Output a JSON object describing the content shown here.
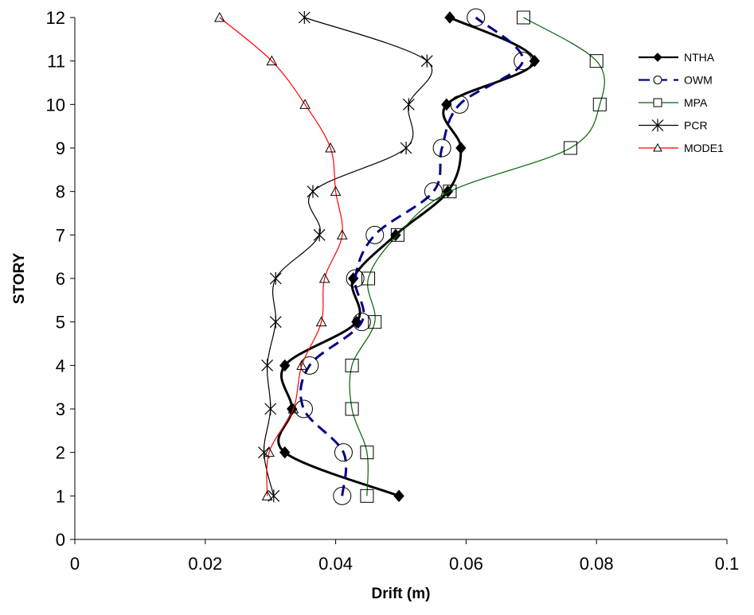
{
  "chart_data": {
    "type": "line",
    "xlabel": "Drift (m)",
    "ylabel": "STORY",
    "xlim": [
      0,
      0.1
    ],
    "ylim": [
      0,
      12
    ],
    "x_ticks": [
      "0",
      "0.02",
      "0.04",
      "0.06",
      "0.08",
      "0.1"
    ],
    "y_ticks": [
      "0",
      "1",
      "2",
      "3",
      "4",
      "5",
      "6",
      "7",
      "8",
      "9",
      "10",
      "11",
      "12"
    ],
    "grid": false,
    "legend_position": "top-right",
    "series": [
      {
        "name": "NTHA",
        "color": "#000000",
        "marker": "filled-diamond",
        "line": "solid-thick",
        "points": [
          [
            0.0497,
            1
          ],
          [
            0.0322,
            2
          ],
          [
            0.0333,
            3
          ],
          [
            0.0322,
            4
          ],
          [
            0.0432,
            5
          ],
          [
            0.0427,
            6
          ],
          [
            0.0492,
            7
          ],
          [
            0.0572,
            8
          ],
          [
            0.0592,
            9
          ],
          [
            0.057,
            10
          ],
          [
            0.0705,
            11
          ],
          [
            0.0575,
            12
          ]
        ]
      },
      {
        "name": "OWM",
        "color": "#00008b",
        "marker": "open-circle",
        "line": "dashed-thick",
        "points": [
          [
            0.041,
            1
          ],
          [
            0.0412,
            2
          ],
          [
            0.0351,
            3
          ],
          [
            0.036,
            4
          ],
          [
            0.044,
            5
          ],
          [
            0.043,
            6
          ],
          [
            0.046,
            7
          ],
          [
            0.055,
            8
          ],
          [
            0.0563,
            9
          ],
          [
            0.059,
            10
          ],
          [
            0.0687,
            11
          ],
          [
            0.0615,
            12
          ]
        ]
      },
      {
        "name": "MPA",
        "color": "#006400",
        "marker": "open-square",
        "line": "solid",
        "points": [
          [
            0.0448,
            1
          ],
          [
            0.0448,
            2
          ],
          [
            0.0425,
            3
          ],
          [
            0.0425,
            4
          ],
          [
            0.046,
            5
          ],
          [
            0.045,
            6
          ],
          [
            0.0495,
            7
          ],
          [
            0.0575,
            8
          ],
          [
            0.076,
            9
          ],
          [
            0.0805,
            10
          ],
          [
            0.08,
            11
          ],
          [
            0.0688,
            12
          ]
        ]
      },
      {
        "name": "PCR",
        "color": "#000000",
        "marker": "asterisk",
        "line": "solid",
        "points": [
          [
            0.0305,
            1
          ],
          [
            0.029,
            2
          ],
          [
            0.03,
            3
          ],
          [
            0.0295,
            4
          ],
          [
            0.0308,
            5
          ],
          [
            0.0308,
            6
          ],
          [
            0.0375,
            7
          ],
          [
            0.0365,
            8
          ],
          [
            0.0508,
            9
          ],
          [
            0.0512,
            10
          ],
          [
            0.054,
            11
          ],
          [
            0.0352,
            12
          ]
        ]
      },
      {
        "name": "MODE1",
        "color": "#ff0000",
        "marker": "open-triangle",
        "line": "solid",
        "points": [
          [
            0.0295,
            1
          ],
          [
            0.0298,
            2
          ],
          [
            0.0335,
            3
          ],
          [
            0.0348,
            4
          ],
          [
            0.0378,
            5
          ],
          [
            0.0383,
            6
          ],
          [
            0.041,
            7
          ],
          [
            0.04,
            8
          ],
          [
            0.0392,
            9
          ],
          [
            0.0353,
            10
          ],
          [
            0.0302,
            11
          ],
          [
            0.0222,
            12
          ]
        ]
      }
    ]
  }
}
